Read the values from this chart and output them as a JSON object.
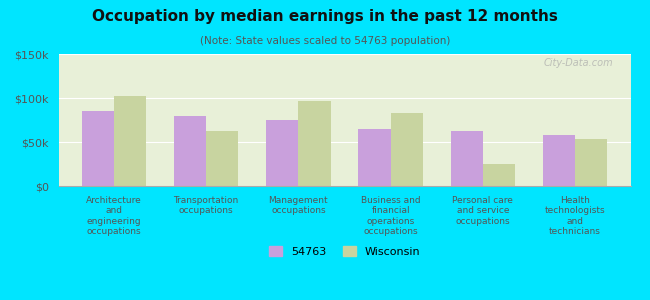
{
  "title": "Occupation by median earnings in the past 12 months",
  "subtitle": "(Note: State values scaled to 54763 population)",
  "categories": [
    "Architecture\nand\nengineering\noccupations",
    "Transportation\noccupations",
    "Management\noccupations",
    "Business and\nfinancial\noperations\noccupations",
    "Personal care\nand service\noccupations",
    "Health\ntechnologists\nand\ntechnicians"
  ],
  "values_54763": [
    85000,
    80000,
    75000,
    65000,
    63000,
    58000
  ],
  "values_wisconsin": [
    102000,
    63000,
    97000,
    83000,
    25000,
    53000
  ],
  "color_54763": "#c9a0dc",
  "color_wisconsin": "#c8d4a0",
  "background_outer": "#00e5ff",
  "background_plot": "#e8f0d8",
  "ylim": [
    0,
    150000
  ],
  "yticks": [
    0,
    50000,
    100000,
    150000
  ],
  "ytick_labels": [
    "$0",
    "$50k",
    "$100k",
    "$150k"
  ],
  "legend_label_54763": "54763",
  "legend_label_wisconsin": "Wisconsin",
  "bar_width": 0.35,
  "watermark": "City-Data.com"
}
